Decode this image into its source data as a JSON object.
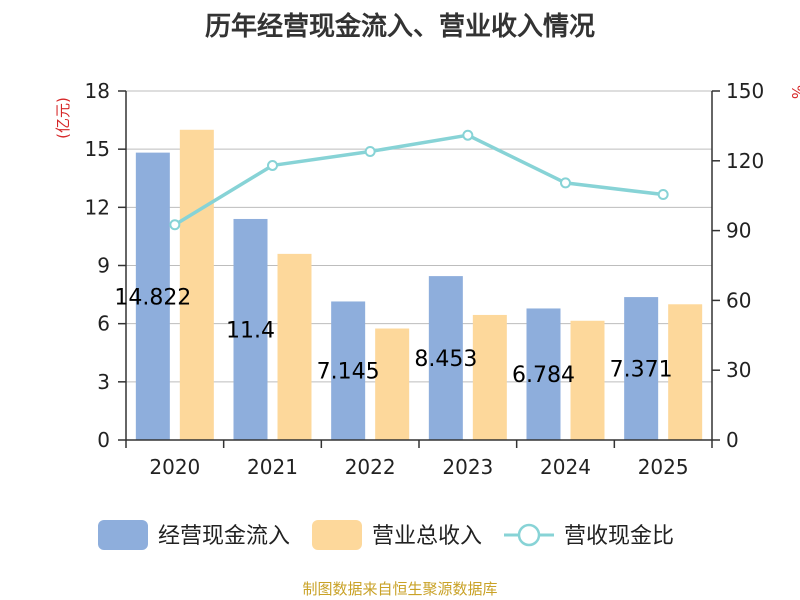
{
  "chart_data": {
    "type": "bar",
    "title": "历年经营现金流入、营业收入情况",
    "categories": [
      "2020",
      "2021",
      "2022",
      "2023",
      "2024",
      "2025"
    ],
    "series": [
      {
        "name": "经营现金流入",
        "type": "bar",
        "axis": "left",
        "color": "#8eaedc",
        "values": [
          14.822,
          11.4,
          7.145,
          8.453,
          6.784,
          7.371
        ],
        "labels": [
          "14.822",
          "11.4",
          "7.145",
          "8.453",
          "6.784",
          "7.371"
        ]
      },
      {
        "name": "营业总收入",
        "type": "bar",
        "axis": "left",
        "color": "#fdd89b",
        "values": [
          16.0,
          9.6,
          5.75,
          6.45,
          6.15,
          7.0
        ]
      },
      {
        "name": "营收现金比",
        "type": "line",
        "axis": "right",
        "color": "#87d3d6",
        "values": [
          92.5,
          118,
          124,
          131,
          110.5,
          105.5
        ]
      }
    ],
    "y_left": {
      "label": "(亿元)",
      "range": [
        0,
        18
      ],
      "ticks": [
        0,
        3,
        6,
        9,
        12,
        15,
        18
      ]
    },
    "y_right": {
      "label": "%",
      "range": [
        0,
        150
      ],
      "ticks": [
        0,
        30,
        60,
        90,
        120,
        150
      ]
    },
    "grid": true,
    "legend_position": "bottom"
  },
  "footer": "制图数据来自恒生聚源数据库"
}
